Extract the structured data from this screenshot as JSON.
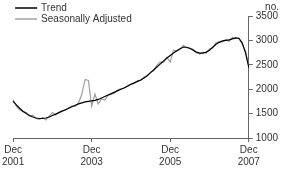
{
  "chart_data": {
    "type": "line",
    "y_label": "no.",
    "categories": [
      "Dec 2001",
      null,
      null,
      null,
      null,
      null,
      null,
      null,
      null,
      null,
      null,
      null,
      null,
      null,
      null,
      null,
      null,
      null,
      null,
      null,
      null,
      null,
      null,
      null,
      "Dec 2003",
      null,
      null,
      null,
      null,
      null,
      null,
      null,
      null,
      null,
      null,
      null,
      null,
      null,
      null,
      null,
      null,
      null,
      null,
      null,
      null,
      null,
      null,
      null,
      "Dec 2005",
      null,
      null,
      null,
      null,
      null,
      null,
      null,
      null,
      null,
      null,
      null,
      null,
      null,
      null,
      null,
      null,
      null,
      null,
      null,
      null,
      null,
      null,
      null,
      "Dec 2007"
    ],
    "series": [
      {
        "name": "Trend",
        "color": "#000000",
        "values": [
          1750,
          1680,
          1610,
          1550,
          1500,
          1460,
          1430,
          1410,
          1400,
          1400,
          1410,
          1430,
          1460,
          1490,
          1520,
          1550,
          1580,
          1610,
          1640,
          1670,
          1700,
          1720,
          1740,
          1750,
          1760,
          1770,
          1790,
          1820,
          1850,
          1880,
          1910,
          1940,
          1970,
          2000,
          2030,
          2060,
          2100,
          2130,
          2160,
          2190,
          2230,
          2280,
          2340,
          2400,
          2460,
          2520,
          2580,
          2640,
          2690,
          2740,
          2790,
          2830,
          2860,
          2860,
          2840,
          2800,
          2760,
          2740,
          2740,
          2760,
          2800,
          2860,
          2920,
          2960,
          2990,
          3000,
          3010,
          3030,
          3050,
          3040,
          2950,
          2750,
          2450
        ]
      },
      {
        "name": "Seasonally Adjusted",
        "color": "#a0a0a0",
        "values": [
          1780,
          1650,
          1580,
          1540,
          1520,
          1450,
          1470,
          1400,
          1380,
          1420,
          1370,
          1450,
          1520,
          1470,
          1530,
          1560,
          1570,
          1620,
          1660,
          1650,
          1720,
          1900,
          2200,
          2180,
          1650,
          1900,
          1700,
          1800,
          1780,
          1870,
          1900,
          1920,
          1990,
          2010,
          2020,
          2080,
          2100,
          2120,
          2170,
          2180,
          2250,
          2270,
          2350,
          2380,
          2500,
          2560,
          2550,
          2650,
          2560,
          2800,
          2780,
          2820,
          2900,
          2850,
          2830,
          2820,
          2750,
          2720,
          2760,
          2740,
          2830,
          2850,
          2950,
          2980,
          2970,
          3020,
          2980,
          3060,
          3040,
          3050,
          2920,
          2780,
          2480
        ]
      }
    ],
    "ylim": [
      1000,
      3500
    ],
    "yticks": [
      1000,
      1500,
      2000,
      2500,
      3000,
      3500
    ],
    "grid": false,
    "legend": "upper left"
  }
}
